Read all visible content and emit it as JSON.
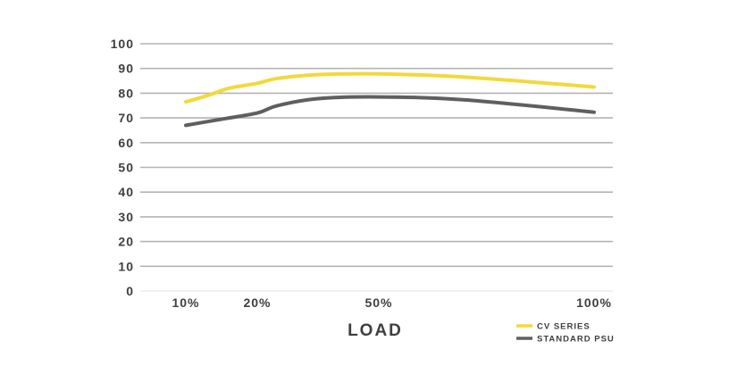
{
  "chart_data": {
    "type": "line",
    "xlabel": "LOAD",
    "ylabel": "",
    "ylim": [
      0,
      100
    ],
    "xlim": [
      0,
      100
    ],
    "yticks": [
      0,
      10,
      20,
      30,
      40,
      50,
      60,
      70,
      80,
      90,
      100
    ],
    "xticks": [
      {
        "value": 10,
        "label": "10%"
      },
      {
        "value": 20,
        "label": "20%"
      },
      {
        "value": 50,
        "label": "50%"
      },
      {
        "value": 100,
        "label": "100%"
      }
    ],
    "grid": true,
    "legend_position": "bottom-right",
    "series": [
      {
        "name": "CV SERIES",
        "color": "#f2d93b",
        "x": [
          10,
          13,
          16,
          20,
          25,
          35,
          50,
          70,
          100
        ],
        "y": [
          76.5,
          79,
          82,
          84,
          86,
          87.5,
          87.8,
          86.5,
          82.5
        ]
      },
      {
        "name": "STANDARD PSU",
        "color": "#5f5f5f",
        "x": [
          10,
          15,
          20,
          25,
          35,
          50,
          70,
          100
        ],
        "y": [
          67,
          69.5,
          72,
          75,
          77.8,
          78.5,
          77.3,
          72.3
        ]
      }
    ]
  }
}
